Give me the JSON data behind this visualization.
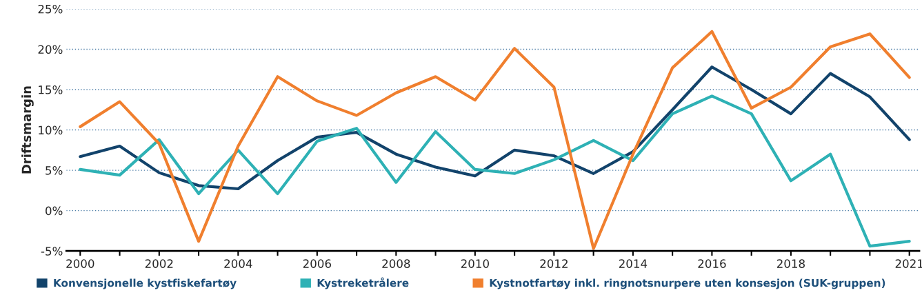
{
  "chart_data": {
    "type": "line",
    "ylabel": "Driftsmargin",
    "x": [
      2000,
      2001,
      2002,
      2003,
      2004,
      2005,
      2006,
      2007,
      2008,
      2009,
      2010,
      2011,
      2012,
      2013,
      2014,
      2015,
      2016,
      2017,
      2018,
      2019,
      2020,
      2021
    ],
    "series": [
      {
        "name": "Konvensjonelle kystfiskefartøy",
        "color": "#12436b",
        "values": [
          6.7,
          8.0,
          4.7,
          3.1,
          2.7,
          6.2,
          9.1,
          9.7,
          7.0,
          5.4,
          4.3,
          7.5,
          6.8,
          4.6,
          7.3,
          12.5,
          17.8,
          15.0,
          12.0,
          17.0,
          14.1,
          8.8
        ]
      },
      {
        "name": "Kystreketrålere",
        "color": "#2eb1b5",
        "values": [
          5.1,
          4.4,
          8.8,
          2.1,
          7.5,
          2.1,
          8.6,
          10.2,
          3.5,
          9.8,
          5.1,
          4.6,
          6.3,
          8.7,
          6.2,
          12.0,
          14.2,
          12.0,
          3.7,
          7.0,
          -4.4,
          -3.8
        ]
      },
      {
        "name": "Kystnotfartøy inkl. ringnotsnurpere uten konsesjon (SUK-gruppen)",
        "color": "#f07f2e",
        "values": [
          10.4,
          13.5,
          8.3,
          -3.8,
          8.0,
          16.6,
          13.6,
          11.8,
          14.6,
          16.6,
          13.7,
          20.1,
          15.3,
          -4.7,
          7.0,
          17.7,
          22.2,
          12.7,
          15.3,
          20.3,
          21.9,
          16.5
        ]
      }
    ],
    "xlim": [
      1999.65,
      2021.25
    ],
    "ylim": [
      -5,
      25
    ],
    "xticks": [
      2000,
      {
        "value": 2001,
        "label": null
      },
      2002,
      {
        "value": 2003,
        "label": null
      },
      2004,
      {
        "value": 2005,
        "label": null
      },
      2006,
      {
        "value": 2007,
        "label": null
      },
      2008,
      {
        "value": 2009,
        "label": null
      },
      2010,
      {
        "value": 2011,
        "label": null
      },
      2012,
      {
        "value": 2013,
        "label": null
      },
      2014,
      {
        "value": 2015,
        "label": null
      },
      2016,
      {
        "value": 2017,
        "label": null
      },
      2018,
      {
        "value": 2019,
        "label": null
      },
      {
        "value": 2020,
        "label": null
      },
      2021
    ],
    "yticks": [
      {
        "value": -5,
        "label": "-5%"
      },
      {
        "value": 0,
        "label": "0%"
      },
      {
        "value": 5,
        "label": "5%"
      },
      {
        "value": 10,
        "label": "10%"
      },
      {
        "value": 15,
        "label": "15%"
      },
      {
        "value": 20,
        "label": "20%"
      },
      {
        "value": 25,
        "label": "25%"
      }
    ],
    "grid": "y",
    "legend": "bottom",
    "marker": "none",
    "line_style": "solid"
  }
}
